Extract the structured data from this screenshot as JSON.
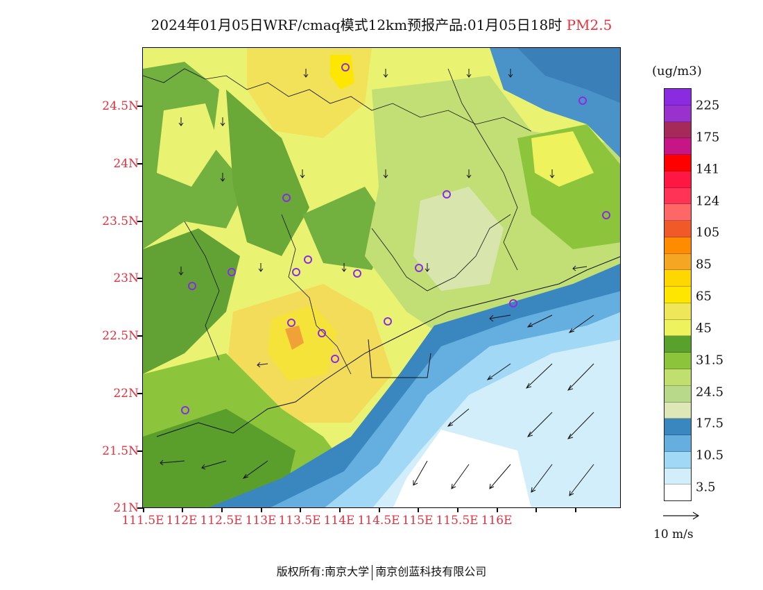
{
  "title": {
    "main": "2024年01月05日WRF/cmaq模式12km预报产品:01月05日18时",
    "pollutant": "PM2.5"
  },
  "latitude_labels": [
    "24.5N",
    "24N",
    "23.5N",
    "23N",
    "22.5N",
    "22N",
    "21.5N",
    "21N"
  ],
  "longitude_labels": [
    "111.5E",
    "112E",
    "112.5E",
    "113E",
    "113.5E",
    "114E",
    "114.5E",
    "115E",
    "115.5E",
    "116E"
  ],
  "legend": {
    "unit": "(ug/m3)",
    "labels": [
      "225",
      "175",
      "141",
      "124",
      "105",
      "85",
      "65",
      "45",
      "31.5",
      "24.5",
      "17.5",
      "10.5",
      "3.5"
    ],
    "colors": [
      "#8a2be2",
      "#9932cc",
      "#a52a5a",
      "#c71585",
      "#ff0000",
      "#ff1744",
      "#ff3355",
      "#ff6666",
      "#f05a28",
      "#ff8c00",
      "#f5a623",
      "#ffd700",
      "#ffe600",
      "#f0e65a",
      "#eef25c",
      "#5aa02c",
      "#8cc43c",
      "#c0df6e",
      "#b8d88a",
      "#dde7b8",
      "#3a87c0",
      "#64aee0",
      "#a0d8f5",
      "#d2eefa",
      "#ffffff"
    ]
  },
  "vector_key": {
    "label": "10 m/s"
  },
  "footer": {
    "left": "版权所有:南京大学",
    "right": "南京创蓝科技有限公司"
  }
}
